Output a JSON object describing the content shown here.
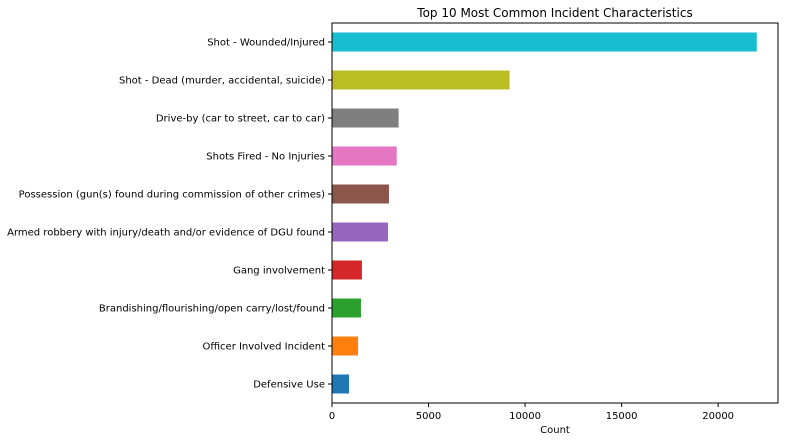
{
  "chart_data": {
    "type": "bar",
    "orientation": "horizontal",
    "title": "Top 10 Most Common Incident Characteristics",
    "xlabel": "Count",
    "ylabel": "",
    "xlim": [
      0,
      23100
    ],
    "xticks": [
      0,
      5000,
      10000,
      15000,
      20000
    ],
    "grid": false,
    "legend": "none",
    "categories": [
      "Shot - Wounded/Injured",
      "Shot - Dead (murder, accidental, suicide)",
      "Drive-by (car to street, car to car)",
      "Shots Fired - No Injuries",
      "Possession (gun(s) found during commission of other crimes)",
      "Armed robbery with injury/death and/or evidence of DGU found",
      "Gang involvement",
      "Brandishing/flourishing/open carry/lost/found",
      "Officer Involved Incident",
      "Defensive Use"
    ],
    "values": [
      22000,
      9200,
      3450,
      3350,
      2950,
      2900,
      1550,
      1500,
      1350,
      880
    ],
    "colors": [
      "#17becf",
      "#bcbd22",
      "#7f7f7f",
      "#e377c2",
      "#8c564b",
      "#9467bd",
      "#d62728",
      "#2ca02c",
      "#ff7f0e",
      "#1f77b4"
    ]
  }
}
